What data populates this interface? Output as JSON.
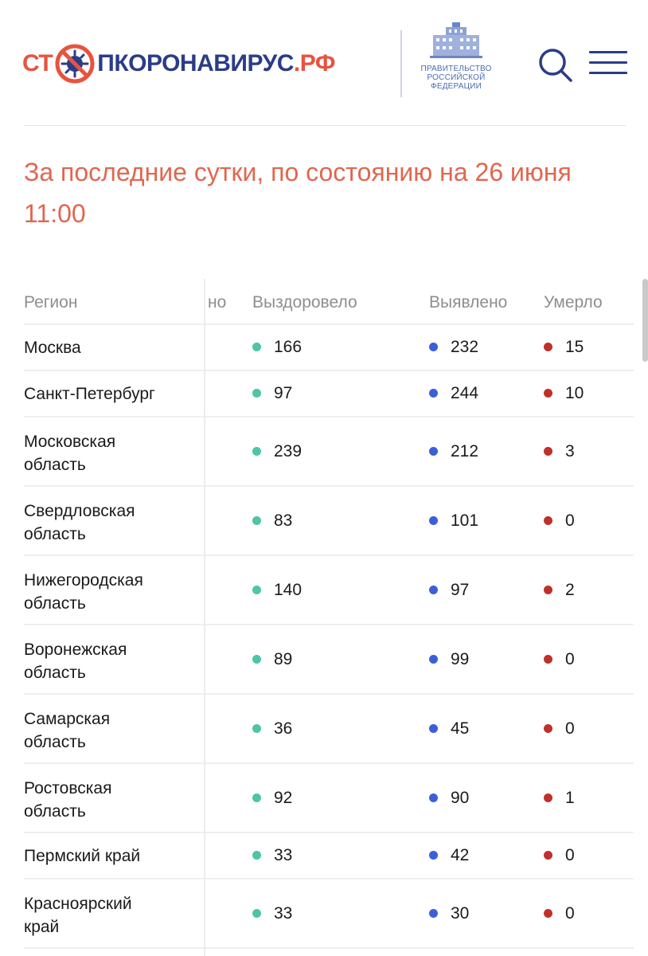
{
  "header": {
    "logo_part1": "СТ",
    "logo_part2": "ПКОРОНАВИРУС",
    "logo_part3": ".РФ",
    "gov_line1": "ПРАВИТЕЛЬСТВО",
    "gov_line2": "РОССИЙСКОЙ",
    "gov_line3": "ФЕДЕРАЦИИ",
    "search_icon": "search-icon",
    "menu_icon": "menu-icon"
  },
  "heading": {
    "line1": "За последние сутки, по состоянию на 26 июня",
    "line2": "11:00"
  },
  "table": {
    "columns": {
      "region": "Регион",
      "hidden": "но",
      "recovered": "Выздоровело",
      "detected": "Выявлено",
      "died": "Умерло"
    },
    "colors": {
      "recovered": "#4ec5a5",
      "detected": "#3a5fd9",
      "died": "#c0302a"
    },
    "rows": [
      {
        "region_l1": "Москва",
        "region_l2": "",
        "recovered": "166",
        "detected": "232",
        "died": "15"
      },
      {
        "region_l1": "Санкт-Петербург",
        "region_l2": "",
        "recovered": "97",
        "detected": "244",
        "died": "10"
      },
      {
        "region_l1": "Московская",
        "region_l2": "область",
        "recovered": "239",
        "detected": "212",
        "died": "3"
      },
      {
        "region_l1": "Свердловская",
        "region_l2": "область",
        "recovered": "83",
        "detected": "101",
        "died": "0"
      },
      {
        "region_l1": "Нижегородская",
        "region_l2": "область",
        "recovered": "140",
        "detected": "97",
        "died": "2"
      },
      {
        "region_l1": "Воронежская",
        "region_l2": "область",
        "recovered": "89",
        "detected": "99",
        "died": "0"
      },
      {
        "region_l1": "Самарская",
        "region_l2": "область",
        "recovered": "36",
        "detected": "45",
        "died": "0"
      },
      {
        "region_l1": "Ростовская",
        "region_l2": "область",
        "recovered": "92",
        "detected": "90",
        "died": "1"
      },
      {
        "region_l1": "Пермский край",
        "region_l2": "",
        "recovered": "33",
        "detected": "42",
        "died": "0"
      },
      {
        "region_l1": "Красноярский",
        "region_l2": "край",
        "recovered": "33",
        "detected": "30",
        "died": "0"
      }
    ]
  }
}
